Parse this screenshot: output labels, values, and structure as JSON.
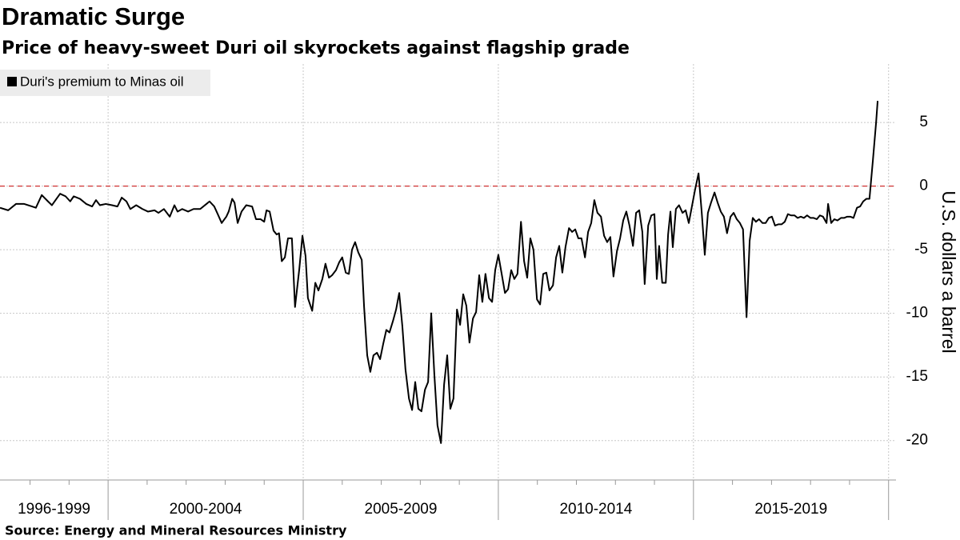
{
  "chart_data": {
    "type": "line",
    "title": "Dramatic Surge",
    "subtitle": "Price of heavy-sweet Duri oil skyrockets against flagship grade",
    "y_label": "U.S. dollars a barrel",
    "source": "Source:  Energy and Mineral Resources Ministry",
    "xlim": [
      1997.23,
      2020.19
    ],
    "ylim": [
      -23.1,
      9.6
    ],
    "yticks": [
      -20,
      -15,
      -10,
      -5,
      0,
      5
    ],
    "x_groups": [
      {
        "label": "1996-1999",
        "start": 1996,
        "end": 2000
      },
      {
        "label": "2000-2004",
        "start": 2000,
        "end": 2005
      },
      {
        "label": "2005-2009",
        "start": 2005,
        "end": 2010
      },
      {
        "label": "2010-2014",
        "start": 2010,
        "end": 2015
      },
      {
        "label": "2015-2019",
        "start": 2015,
        "end": 2020
      }
    ],
    "xminor_ticks": [
      1998,
      1999,
      2001,
      2002,
      2003,
      2004,
      2006,
      2007,
      2008,
      2009,
      2011,
      2012,
      2013,
      2014,
      2016,
      2017,
      2018,
      2019
    ],
    "grid": true,
    "reference_line": {
      "value": 0,
      "color": "#d03030"
    },
    "legend": "top-left",
    "series": [
      {
        "name": "Duri's premium to Minas oil",
        "color": "#000000",
        "x": [
          1997.23,
          1997.44,
          1997.64,
          1997.85,
          1998.05,
          1998.15,
          1998.3,
          1998.46,
          1998.56,
          1998.77,
          1998.91,
          1999.03,
          1999.12,
          1999.28,
          1999.44,
          1999.59,
          1999.69,
          1999.79,
          1999.94,
          2000.1,
          2000.24,
          2000.35,
          2000.47,
          2000.57,
          2000.72,
          2000.88,
          2001.02,
          2001.19,
          2001.29,
          2001.43,
          2001.58,
          2001.7,
          2001.78,
          2001.9,
          2002.05,
          2002.19,
          2002.36,
          2002.52,
          2002.6,
          2002.72,
          2002.81,
          2002.91,
          2003.03,
          2003.09,
          2003.18,
          2003.24,
          2003.32,
          2003.42,
          2003.54,
          2003.69,
          2003.79,
          2003.91,
          2004.0,
          2004.06,
          2004.14,
          2004.24,
          2004.32,
          2004.38,
          2004.45,
          2004.53,
          2004.61,
          2004.71,
          2004.79,
          2004.9,
          2004.98,
          2005.06,
          2005.12,
          2005.23,
          2005.31,
          2005.39,
          2005.49,
          2005.57,
          2005.66,
          2005.74,
          2005.84,
          2005.92,
          2006.0,
          2006.09,
          2006.17,
          2006.25,
          2006.33,
          2006.41,
          2006.5,
          2006.56,
          2006.64,
          2006.72,
          2006.8,
          2006.89,
          2006.97,
          2007.05,
          2007.13,
          2007.21,
          2007.3,
          2007.38,
          2007.46,
          2007.54,
          2007.62,
          2007.71,
          2007.79,
          2007.87,
          2007.95,
          2008.03,
          2008.12,
          2008.2,
          2008.28,
          2008.36,
          2008.44,
          2008.53,
          2008.61,
          2008.69,
          2008.77,
          2008.85,
          2008.94,
          2009.02,
          2009.1,
          2009.18,
          2009.26,
          2009.35,
          2009.43,
          2009.51,
          2009.59,
          2009.67,
          2009.76,
          2009.84,
          2009.92,
          2010.0,
          2010.08,
          2010.17,
          2010.25,
          2010.33,
          2010.41,
          2010.49,
          2010.58,
          2010.66,
          2010.74,
          2010.82,
          2010.9,
          2010.99,
          2011.07,
          2011.15,
          2011.23,
          2011.31,
          2011.4,
          2011.48,
          2011.56,
          2011.64,
          2011.72,
          2011.81,
          2011.89,
          2011.97,
          2012.05,
          2012.13,
          2012.22,
          2012.3,
          2012.38,
          2012.46,
          2012.54,
          2012.63,
          2012.71,
          2012.79,
          2012.87,
          2012.95,
          2013.04,
          2013.12,
          2013.2,
          2013.28,
          2013.36,
          2013.45,
          2013.53,
          2013.61,
          2013.69,
          2013.75,
          2013.84,
          2013.92,
          2014.0,
          2014.06,
          2014.12,
          2014.2,
          2014.29,
          2014.35,
          2014.41,
          2014.47,
          2014.55,
          2014.63,
          2014.72,
          2014.8,
          2014.88,
          2014.96,
          2015.04,
          2015.13,
          2015.21,
          2015.29,
          2015.37,
          2015.45,
          2015.54,
          2015.62,
          2015.7,
          2015.78,
          2015.86,
          2015.95,
          2016.03,
          2016.11,
          2016.19,
          2016.27,
          2016.36,
          2016.44,
          2016.52,
          2016.6,
          2016.68,
          2016.77,
          2016.85,
          2016.93,
          2017.01,
          2017.09,
          2017.18,
          2017.26,
          2017.34,
          2017.42,
          2017.5,
          2017.59,
          2017.67,
          2017.75,
          2017.83,
          2017.91,
          2018.0,
          2018.08,
          2018.16,
          2018.24,
          2018.32,
          2018.41,
          2018.45,
          2018.53,
          2018.61,
          2018.69,
          2018.78,
          2018.86,
          2018.94,
          2019.02,
          2019.1,
          2019.19,
          2019.27,
          2019.35,
          2019.43,
          2019.51,
          2019.6,
          2019.68,
          2019.72
        ],
        "values": [
          -1.7,
          -1.9,
          -1.4,
          -1.4,
          -1.6,
          -1.7,
          -0.7,
          -1.2,
          -1.5,
          -0.6,
          -0.8,
          -1.2,
          -0.8,
          -1.0,
          -1.4,
          -1.6,
          -1.1,
          -1.5,
          -1.4,
          -1.5,
          -1.6,
          -0.9,
          -1.2,
          -1.8,
          -1.5,
          -1.8,
          -2.0,
          -1.9,
          -2.1,
          -1.8,
          -2.4,
          -1.5,
          -2.0,
          -1.8,
          -2.0,
          -1.8,
          -1.8,
          -1.4,
          -1.2,
          -1.6,
          -2.2,
          -2.9,
          -2.4,
          -2.0,
          -1.0,
          -1.3,
          -2.9,
          -2.0,
          -1.5,
          -1.6,
          -2.6,
          -2.6,
          -2.8,
          -1.9,
          -2.0,
          -3.5,
          -3.8,
          -3.7,
          -5.9,
          -5.6,
          -4.1,
          -4.1,
          -9.5,
          -6.5,
          -3.9,
          -5.5,
          -8.8,
          -9.8,
          -7.6,
          -8.2,
          -7.3,
          -6.1,
          -7.2,
          -7.0,
          -6.6,
          -6.0,
          -5.6,
          -6.8,
          -6.9,
          -5.0,
          -4.4,
          -5.2,
          -5.8,
          -9.5,
          -13.3,
          -14.6,
          -13.3,
          -13.1,
          -13.6,
          -12.4,
          -11.3,
          -11.5,
          -10.6,
          -9.7,
          -8.4,
          -11.0,
          -14.4,
          -16.7,
          -17.6,
          -15.4,
          -17.5,
          -17.7,
          -16.0,
          -15.4,
          -10.0,
          -14.8,
          -18.8,
          -20.2,
          -15.6,
          -13.3,
          -17.5,
          -16.7,
          -9.7,
          -10.9,
          -8.5,
          -9.4,
          -12.3,
          -10.4,
          -9.9,
          -7.0,
          -9.1,
          -6.9,
          -8.8,
          -9.1,
          -6.6,
          -5.4,
          -6.8,
          -8.4,
          -8.1,
          -6.6,
          -7.3,
          -6.9,
          -2.8,
          -5.9,
          -7.2,
          -4.1,
          -5.0,
          -8.9,
          -9.3,
          -6.9,
          -6.8,
          -8.2,
          -7.8,
          -5.6,
          -4.7,
          -6.8,
          -4.8,
          -3.3,
          -3.6,
          -3.4,
          -4.1,
          -4.1,
          -5.6,
          -3.6,
          -2.9,
          -1.1,
          -2.1,
          -2.4,
          -3.9,
          -4.4,
          -4.0,
          -7.1,
          -5.1,
          -4.1,
          -2.7,
          -2.0,
          -3.1,
          -4.7,
          -2.1,
          -1.9,
          -3.6,
          -7.7,
          -3.1,
          -2.3,
          -2.2,
          -7.3,
          -4.7,
          -7.6,
          -7.6,
          -3.8,
          -2.0,
          -4.8,
          -1.8,
          -1.5,
          -2.1,
          -1.9,
          -2.9,
          -1.6,
          -0.3,
          1.0,
          -2.0,
          -5.4,
          -2.1,
          -1.3,
          -0.5,
          -1.3,
          -2.0,
          -2.4,
          -3.7,
          -2.4,
          -2.1,
          -2.6,
          -2.9,
          -3.4,
          -10.3,
          -4.3,
          -2.5,
          -2.8,
          -2.6,
          -2.9,
          -2.9,
          -2.5,
          -2.4,
          -3.1,
          -3.0,
          -3.0,
          -2.8,
          -2.2,
          -2.3,
          -2.3,
          -2.5,
          -2.4,
          -2.5,
          -2.3,
          -2.5,
          -2.5,
          -2.6,
          -2.3,
          -2.4,
          -2.9,
          -1.4,
          -2.9,
          -2.6,
          -2.7,
          -2.5,
          -2.5,
          -2.4,
          -2.4,
          -2.5,
          -1.7,
          -1.6,
          -1.2,
          -1.0,
          -1.0,
          2.1,
          5.0,
          6.7
        ]
      }
    ]
  }
}
